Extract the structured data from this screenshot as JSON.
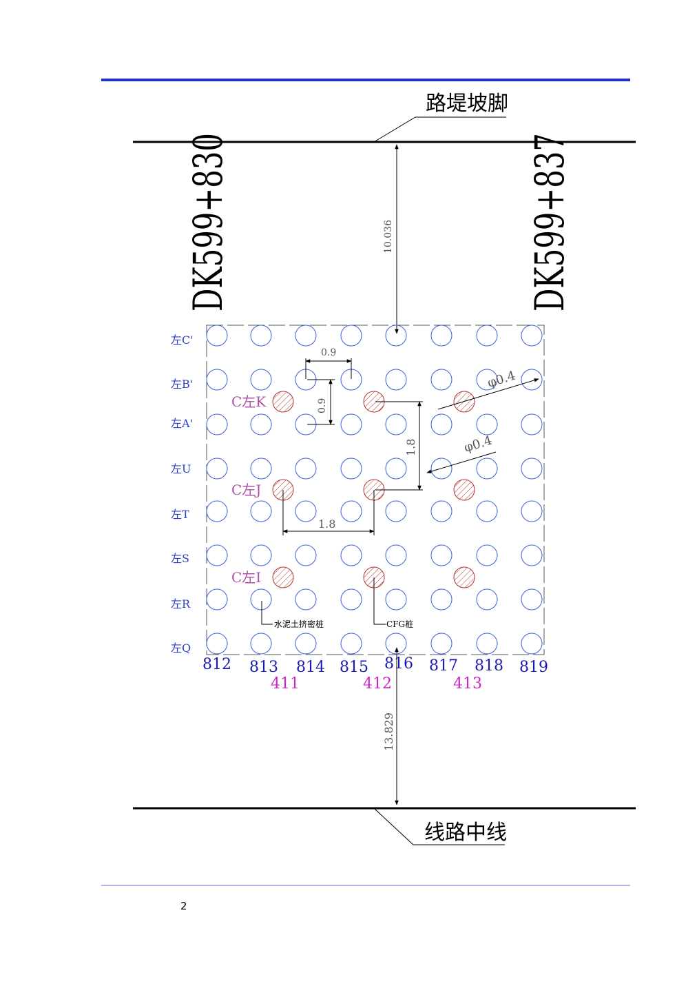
{
  "labels": {
    "embankment_toe": "路堤坡脚",
    "line_center": "线路中线",
    "station_left": "DK599+830",
    "station_right": "DK599+837",
    "dim_top": "10.036",
    "dim_bottom": "13.829",
    "dim_spacing_h": "0.9",
    "dim_spacing_v": "0.9",
    "dim_cfg_h": "1.8",
    "dim_cfg_v": "1.8",
    "dia_1": "φ0.4",
    "dia_2": "φ0.4",
    "callout_cement": "水泥土挤密桩",
    "callout_cfg": "CFG桩",
    "page_number": "2"
  },
  "rows": [
    "左C'",
    "左B'",
    "左A'",
    "左U",
    "左T",
    "左S",
    "左R",
    "左Q"
  ],
  "columns": [
    "812",
    "813",
    "814",
    "815",
    "816",
    "817",
    "818",
    "819"
  ],
  "groups": [
    "411",
    "412",
    "413"
  ],
  "cfg_rows": [
    "C左K",
    "C左J",
    "C左I"
  ],
  "colors": {
    "header_rule": "#1f2fd0",
    "footer_rule": "#6a6ad0",
    "pile_outline": "#3a5fd8",
    "cfg_hatch": "#b03030",
    "row_label": "#2a3fc4",
    "column_label": "#1a1ab0",
    "group_label": "#d020c8",
    "cfg_label": "#b050a8"
  },
  "icons": {
    "cement_pile": "circle-outline-icon",
    "cfg_pile": "hatched-circle-icon"
  }
}
